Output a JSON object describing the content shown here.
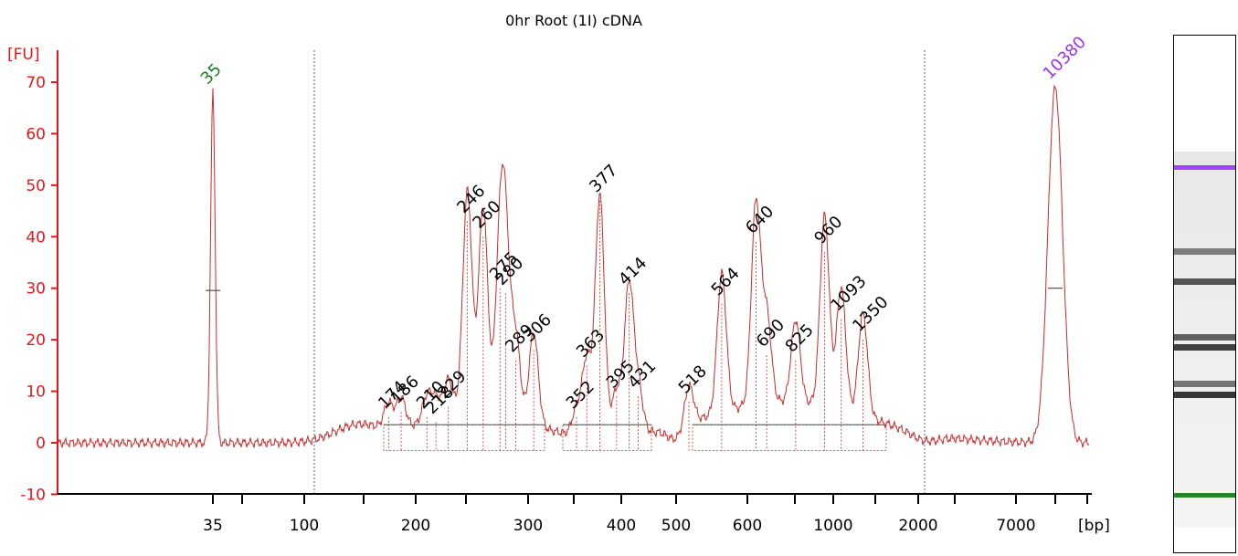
{
  "colors": {
    "trace": "#cc2a2a",
    "yaxis": "#e8151b",
    "lower_marker": "#1a7e1a",
    "upper_marker": "#9b30ff",
    "guide": "#5b5bb0",
    "baseline": "#4f7f72"
  },
  "chart_data": {
    "type": "line",
    "title": "0hr Root (1I) cDNA",
    "ylabel": "[FU]",
    "xlabel": "[bp]",
    "ylim": [
      -10,
      75
    ],
    "yticks": [
      -10,
      0,
      10,
      20,
      30,
      40,
      50,
      60,
      70
    ],
    "xticks": [
      "35",
      "100",
      "200",
      "300",
      "400",
      "500",
      "600",
      "1000",
      "2000",
      "7000"
    ],
    "x_scale": "nonlinear (electropherogram, bp)",
    "lower_marker": {
      "bp": 35,
      "label": "35",
      "height": 68
    },
    "upper_marker": {
      "bp": 10380,
      "label": "10380",
      "height": 69
    },
    "peaks": [
      {
        "bp": 174,
        "label": "174",
        "height": 5
      },
      {
        "bp": 186,
        "label": "186",
        "height": 6
      },
      {
        "bp": 210,
        "label": "210",
        "height": 5
      },
      {
        "bp": 218,
        "label": "218",
        "height": 4
      },
      {
        "bp": 229,
        "label": "229",
        "height": 7
      },
      {
        "bp": 246,
        "label": "246",
        "height": 43
      },
      {
        "bp": 260,
        "label": "260",
        "height": 40
      },
      {
        "bp": 275,
        "label": "275",
        "height": 30
      },
      {
        "bp": 280,
        "label": "280",
        "height": 29
      },
      {
        "bp": 289,
        "label": "289",
        "height": 16
      },
      {
        "bp": 306,
        "label": "306",
        "height": 18
      },
      {
        "bp": 352,
        "label": "352",
        "height": 5
      },
      {
        "bp": 363,
        "label": "363",
        "height": 15
      },
      {
        "bp": 377,
        "label": "377",
        "height": 47
      },
      {
        "bp": 395,
        "label": "395",
        "height": 9
      },
      {
        "bp": 414,
        "label": "414",
        "height": 29
      },
      {
        "bp": 431,
        "label": "431",
        "height": 9
      },
      {
        "bp": 518,
        "label": "518",
        "height": 8
      },
      {
        "bp": 564,
        "label": "564",
        "height": 27
      },
      {
        "bp": 640,
        "label": "640",
        "height": 39
      },
      {
        "bp": 690,
        "label": "690",
        "height": 17
      },
      {
        "bp": 825,
        "label": "825",
        "height": 16
      },
      {
        "bp": 960,
        "label": "960",
        "height": 37
      },
      {
        "bp": 1093,
        "label": "1093",
        "height": 24
      },
      {
        "bp": 1350,
        "label": "1350",
        "height": 20
      }
    ],
    "grid": false,
    "legend": "none"
  },
  "gel": {
    "bands": [
      {
        "intensity": 0.9,
        "color": "#9b30ff"
      },
      {
        "intensity": 0.55
      },
      {
        "intensity": 0.75
      },
      {
        "intensity": 0.7
      },
      {
        "intensity": 0.85
      },
      {
        "intensity": 0.6
      },
      {
        "intensity": 0.9
      },
      {
        "intensity": 0.95,
        "color": "#1a7e1a"
      }
    ]
  }
}
